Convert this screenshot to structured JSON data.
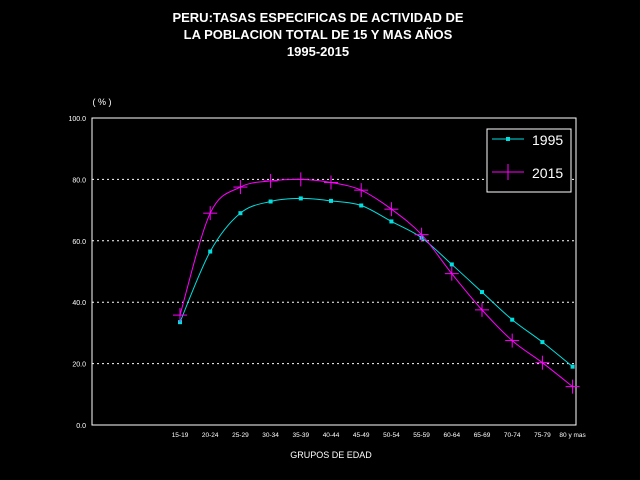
{
  "chart_data": {
    "type": "line",
    "title_lines": [
      "PERU:TASAS ESPECIFICAS DE ACTIVIDAD DE",
      "LA POBLACION TOTAL DE 15 Y MAS AÑOS",
      "1995-2015"
    ],
    "ylabel": "( % )",
    "xlabel": "GRUPOS DE EDAD",
    "ylim": [
      0,
      100
    ],
    "yticks": [
      "0.0",
      "20.0",
      "40.0",
      "60.0",
      "80.0",
      "100.0"
    ],
    "grid": "horizontal dotted at 20, 40, 60, 80",
    "legend_position": "top-right",
    "categories": [
      "15-19",
      "20-24",
      "25-29",
      "30-34",
      "35-39",
      "40-44",
      "45-49",
      "50-54",
      "55-59",
      "60-64",
      "65-69",
      "70-74",
      "75-79",
      "80 y mas"
    ],
    "series": [
      {
        "name": "1995",
        "color": "#00e0e0",
        "marker": "square",
        "values": [
          33.5,
          56.5,
          69.0,
          72.8,
          73.8,
          73.0,
          71.5,
          66.3,
          61.0,
          52.3,
          43.3,
          34.3,
          27.0,
          19.0
        ]
      },
      {
        "name": "2015",
        "color": "#ff00ff",
        "marker": "plus",
        "values": [
          35.8,
          69.0,
          77.5,
          79.5,
          80.0,
          79.0,
          76.5,
          70.3,
          62.0,
          49.3,
          37.5,
          27.5,
          20.3,
          12.5
        ]
      }
    ]
  }
}
